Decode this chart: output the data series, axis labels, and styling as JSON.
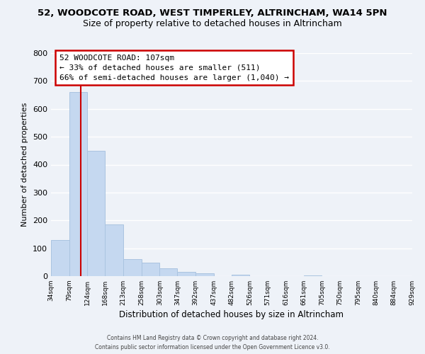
{
  "title_line1": "52, WOODCOTE ROAD, WEST TIMPERLEY, ALTRINCHAM, WA14 5PN",
  "title_line2": "Size of property relative to detached houses in Altrincham",
  "xlabel": "Distribution of detached houses by size in Altrincham",
  "ylabel": "Number of detached properties",
  "bin_edges": [
    34,
    79,
    124,
    168,
    213,
    258,
    303,
    347,
    392,
    437,
    482,
    526,
    571,
    616,
    661,
    705,
    750,
    795,
    840,
    884,
    929
  ],
  "bar_heights": [
    130,
    660,
    450,
    185,
    60,
    48,
    27,
    14,
    10,
    0,
    5,
    0,
    0,
    0,
    2,
    0,
    0,
    0,
    0,
    0
  ],
  "bar_color": "#c5d8f0",
  "bar_edge_color": "#aac4e0",
  "property_line_x": 107,
  "annotation_text_line1": "52 WOODCOTE ROAD: 107sqm",
  "annotation_text_line2": "← 33% of detached houses are smaller (511)",
  "annotation_text_line3": "66% of semi-detached houses are larger (1,040) →",
  "annotation_box_color": "#ffffff",
  "annotation_box_edge": "#cc0000",
  "property_line_color": "#cc0000",
  "ylim": [
    0,
    800
  ],
  "yticks": [
    0,
    100,
    200,
    300,
    400,
    500,
    600,
    700,
    800
  ],
  "tick_labels": [
    "34sqm",
    "79sqm",
    "124sqm",
    "168sqm",
    "213sqm",
    "258sqm",
    "303sqm",
    "347sqm",
    "392sqm",
    "437sqm",
    "482sqm",
    "526sqm",
    "571sqm",
    "616sqm",
    "661sqm",
    "705sqm",
    "750sqm",
    "795sqm",
    "840sqm",
    "884sqm",
    "929sqm"
  ],
  "footer_line1": "Contains HM Land Registry data © Crown copyright and database right 2024.",
  "footer_line2": "Contains public sector information licensed under the Open Government Licence v3.0.",
  "background_color": "#eef2f8",
  "grid_color": "#ffffff",
  "title_fontsize": 9.5,
  "subtitle_fontsize": 9.0
}
